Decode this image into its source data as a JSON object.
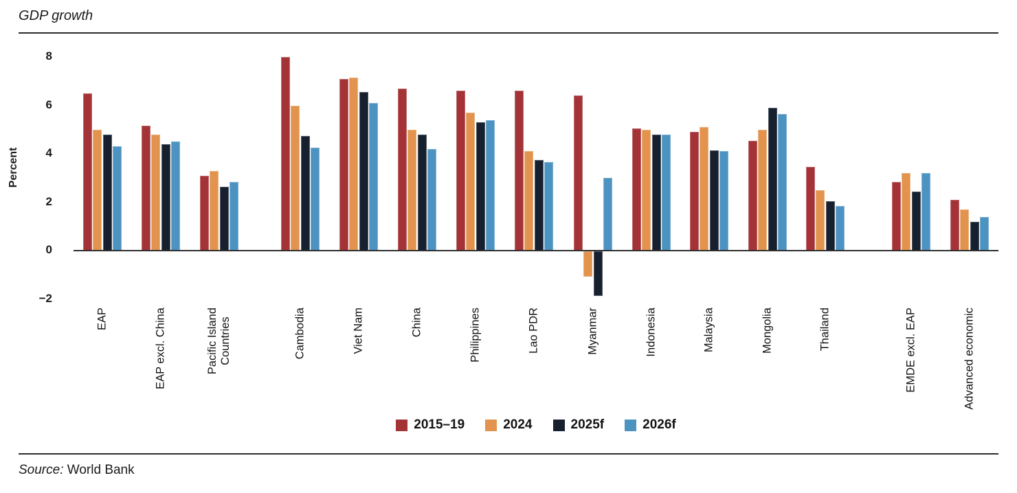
{
  "title": "GDP growth",
  "source": {
    "prefix": "Source:",
    "text": "World Bank"
  },
  "colors": {
    "series_2015_19": "#A43338",
    "series_2024": "#E2944E",
    "series_2025f": "#16202F",
    "series_2026f": "#4D93C1",
    "axis": "#2e2e2e",
    "rule": "#2b2b2b",
    "text": "#1a1a1a"
  },
  "chart_data": {
    "type": "bar",
    "title": "GDP growth",
    "xlabel": "",
    "ylabel": "Percent",
    "ylim": [
      -2,
      8
    ],
    "grid": false,
    "legend_position": "bottom-center",
    "yticks": [
      {
        "value": 8,
        "label": "8"
      },
      {
        "value": 6,
        "label": "6"
      },
      {
        "value": 4,
        "label": "4"
      },
      {
        "value": 2,
        "label": "2"
      },
      {
        "value": 0,
        "label": "0"
      },
      {
        "value": -2,
        "label": "−2"
      }
    ],
    "categories": [
      "EAP",
      "EAP excl. China",
      "Pacific Island\nCountries",
      "Cambodia",
      "Viet Nam",
      "China",
      "Philippines",
      "Lao PDR",
      "Myanmar",
      "Indonesia",
      "Malaysia",
      "Mongolia",
      "Thailand",
      "EMDE excl. EAP",
      "Advanced economic"
    ],
    "category_blocks": [
      [
        "EAP",
        "EAP excl. China",
        "Pacific Island\nCountries"
      ],
      [
        "Cambodia",
        "Viet Nam",
        "China",
        "Philippines",
        "Lao PDR",
        "Myanmar",
        "Indonesia",
        "Malaysia",
        "Mongolia",
        "Thailand"
      ],
      [
        "EMDE excl. EAP",
        "Advanced economic"
      ]
    ],
    "series": [
      {
        "name": "2015–19",
        "color": "#A43338",
        "values": [
          6.5,
          5.15,
          3.1,
          8.0,
          7.1,
          6.7,
          6.6,
          6.6,
          6.4,
          5.05,
          4.9,
          4.55,
          3.45,
          2.85,
          2.1
        ]
      },
      {
        "name": "2024",
        "color": "#E2944E",
        "values": [
          5.0,
          4.8,
          3.3,
          6.0,
          7.15,
          5.0,
          5.7,
          4.1,
          -1.05,
          5.0,
          5.1,
          5.0,
          2.5,
          3.2,
          1.7
        ]
      },
      {
        "name": "2025f",
        "color": "#16202F",
        "values": [
          4.8,
          4.4,
          2.65,
          4.75,
          6.55,
          4.8,
          5.3,
          3.75,
          -1.85,
          4.8,
          4.15,
          5.9,
          2.05,
          2.45,
          1.2
        ]
      },
      {
        "name": "2026f",
        "color": "#4D93C1",
        "values": [
          4.3,
          4.5,
          2.85,
          4.25,
          6.1,
          4.2,
          5.4,
          3.65,
          3.0,
          4.8,
          4.1,
          5.65,
          1.85,
          3.2,
          1.4
        ]
      }
    ]
  }
}
